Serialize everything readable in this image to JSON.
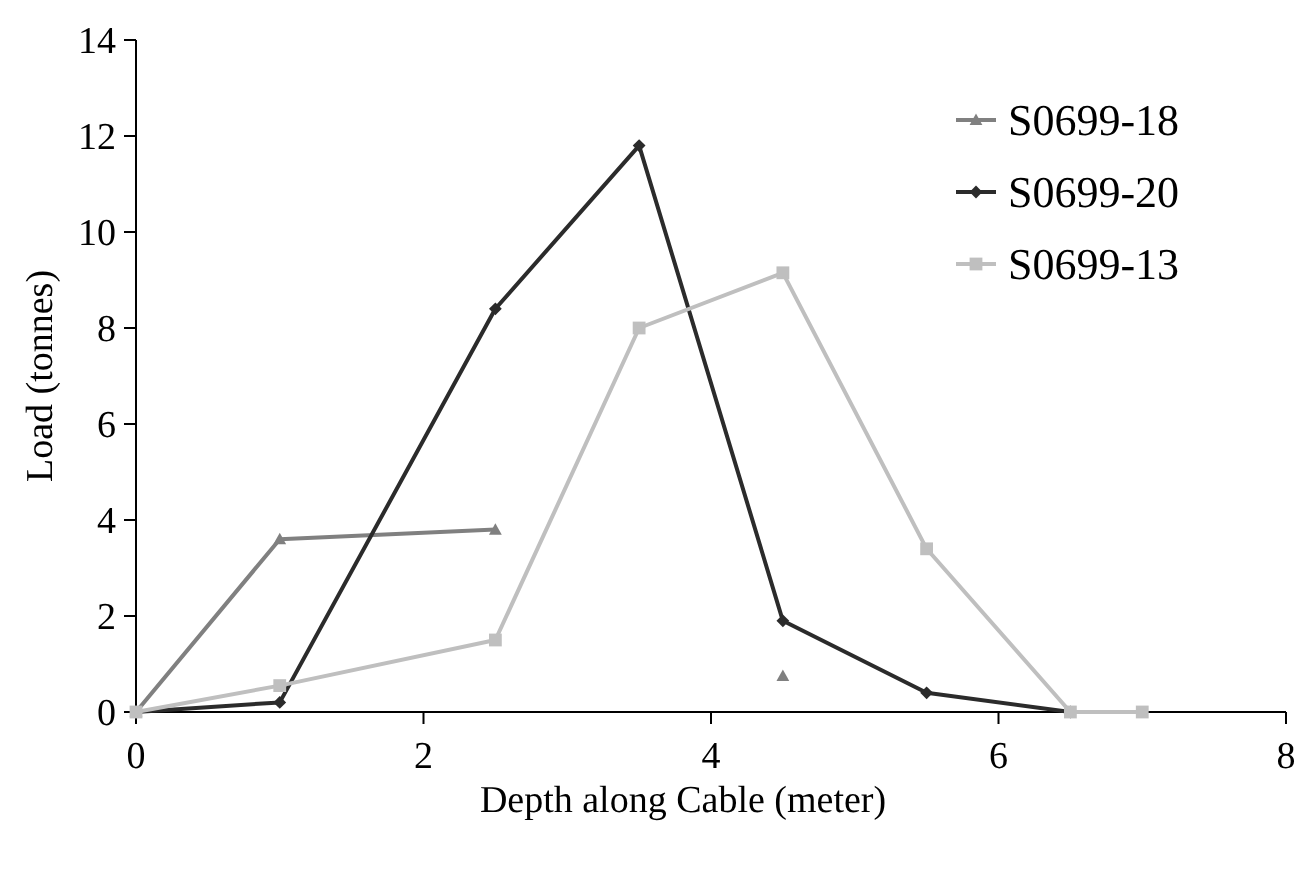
{
  "chart_data": {
    "type": "line",
    "xlabel": "Depth along Cable (meter)",
    "ylabel": "Load (tonnes)",
    "x": [
      0,
      1,
      2.5,
      3.5,
      4.5,
      5.5,
      6.5,
      7
    ],
    "xlim": [
      0,
      8
    ],
    "xticks": [
      0,
      2,
      4,
      6,
      8
    ],
    "ylim": [
      0,
      14
    ],
    "yticks": [
      0,
      2,
      4,
      6,
      8,
      10,
      12,
      14
    ],
    "grid": false,
    "legend": "top right",
    "series": [
      {
        "name": "S0699-18",
        "color": "#808080",
        "marker": "triangle",
        "values": [
          0,
          3.6,
          3.8,
          null,
          0.75,
          null,
          null,
          null
        ]
      },
      {
        "name": "S0699-20",
        "color": "#2b2b2b",
        "marker": "diamond",
        "values": [
          0,
          0.2,
          8.4,
          11.8,
          1.9,
          0.4,
          0,
          null
        ]
      },
      {
        "name": "S0699-13",
        "color": "#bfbfbf",
        "marker": "square",
        "values": [
          0,
          0.55,
          1.5,
          8.0,
          9.15,
          3.4,
          0,
          0
        ]
      }
    ]
  }
}
